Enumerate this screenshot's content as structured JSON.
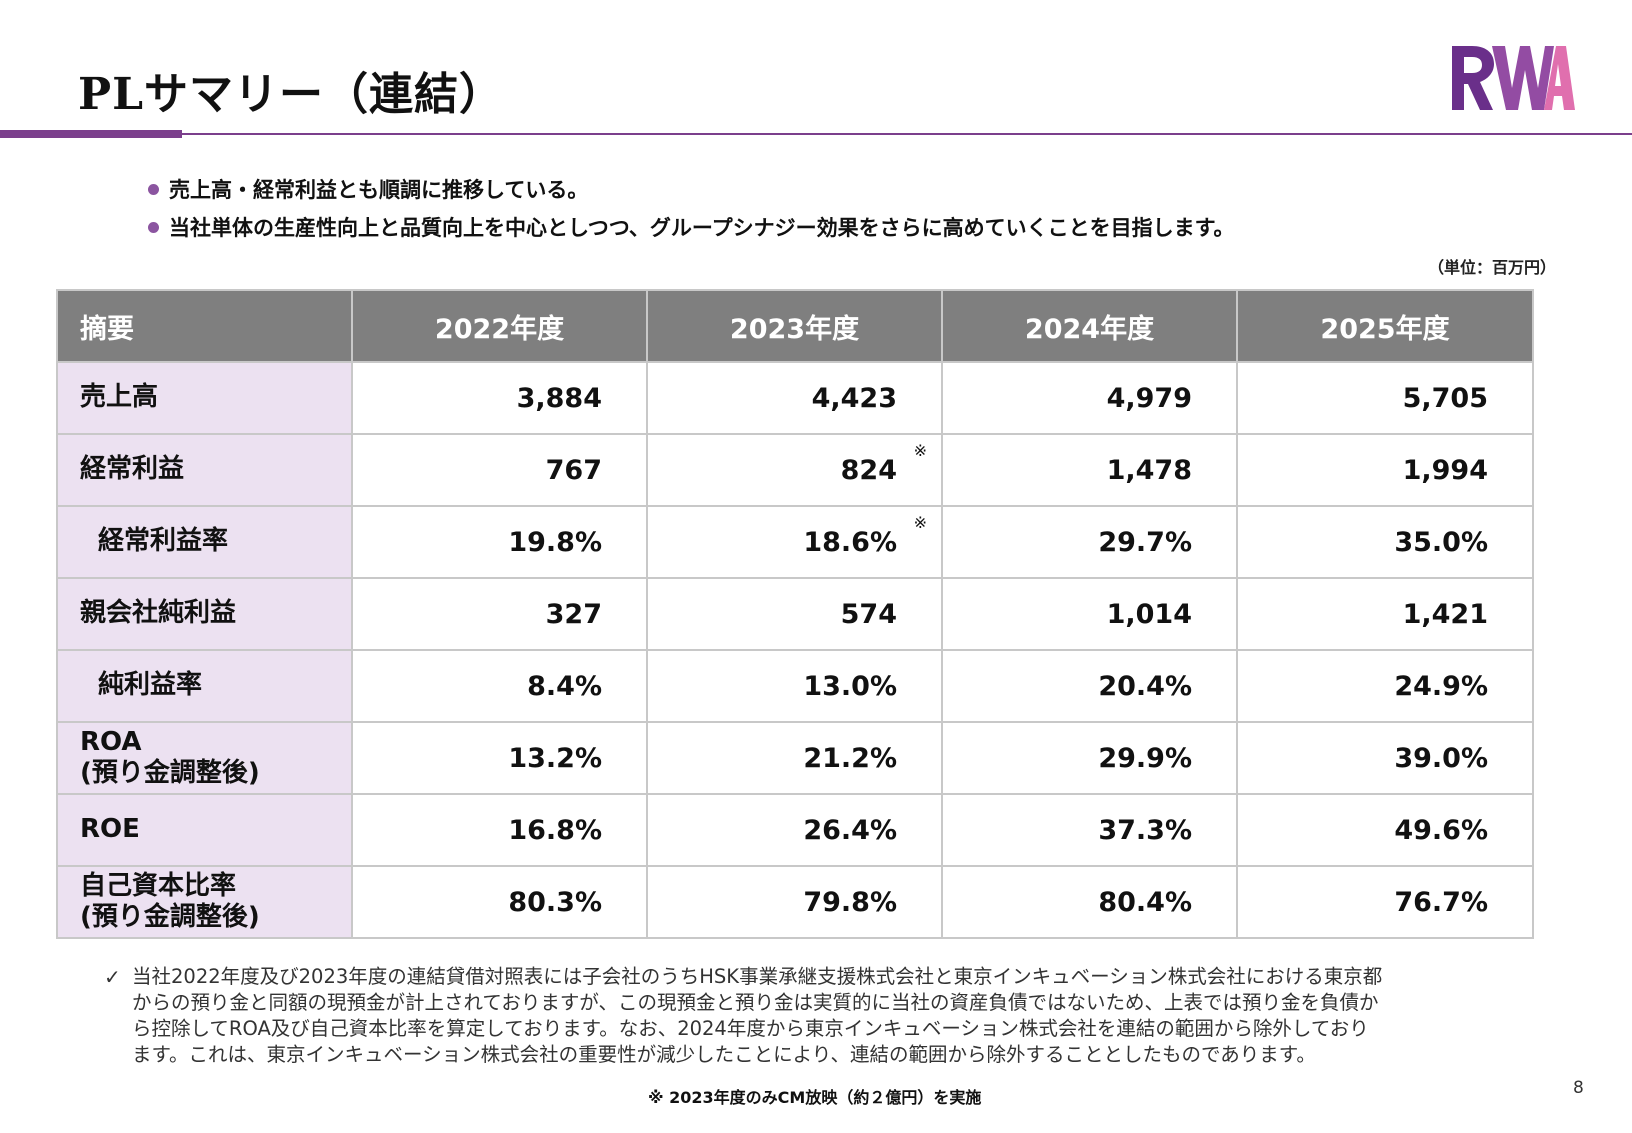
{
  "title": "PLサマリー（連結）",
  "logo_text": "RWA",
  "bullets": [
    "売上高・経常利益とも順調に推移している。",
    "当社単体の生産性向上と品質向上を中心としつつ、グループシナジー効果をさらに高めていくことを目指します。"
  ],
  "unit": "（単位：百万円）",
  "table": {
    "headers": [
      "摘要",
      "2022年度",
      "2023年度",
      "2024年度",
      "2025年度"
    ],
    "rows": [
      {
        "label": "売上高",
        "values": [
          "3,884",
          "4,423",
          "4,979",
          "5,705"
        ]
      },
      {
        "label": "経常利益",
        "values": [
          "767",
          "824",
          "1,478",
          "1,994"
        ]
      },
      {
        "label": "経常利益率",
        "values": [
          "19.8%",
          "18.6%",
          "29.7%",
          "35.0%"
        ]
      },
      {
        "label": "親会社純利益",
        "values": [
          "327",
          "574",
          "1,014",
          "1,421"
        ]
      },
      {
        "label": "純利益率",
        "values": [
          "8.4%",
          "13.0%",
          "20.4%",
          "24.9%"
        ]
      },
      {
        "label_line1": "ROA",
        "label_line2": "(預り金調整後)",
        "values": [
          "13.2%",
          "21.2%",
          "29.9%",
          "39.0%"
        ]
      },
      {
        "label": "ROE",
        "values": [
          "16.8%",
          "26.4%",
          "37.3%",
          "49.6%"
        ]
      },
      {
        "label_line1": "自己資本比率",
        "label_line2": "(預り金調整後)",
        "values": [
          "80.3%",
          "79.8%",
          "80.4%",
          "76.7%"
        ]
      }
    ],
    "mark": "※"
  },
  "note_check": "✓",
  "note_lines": [
    "当社2022年度及び2023年度の連結貸借対照表には子会社のうちHSK事業承継支援株式会社と東京インキュベーション株式会社における東京都",
    "からの預り金と同額の現預金が計上されておりますが、この現預金と預り金は実質的に当社の資産負債ではないため、上表では預り金を負債か",
    "ら控除してROA及び自己資本比率を算定しております。なお、2024年度から東京インキュベーション株式会社を連結の範囲から除外しており",
    "ます。これは、東京インキュベーション株式会社の重要性が減少したことにより、連結の範囲から除外することとしたものであります。"
  ],
  "footnote": "※ 2023年度のみCM放映（約２億円）を実施",
  "page_number": "8",
  "colors": {
    "accent": "#7b3f8c",
    "header_bg": "#7f7f7f",
    "label_bg": "#ece1f1",
    "logo_purple": "#6a2f8a",
    "logo_pink": "#e06fae"
  }
}
